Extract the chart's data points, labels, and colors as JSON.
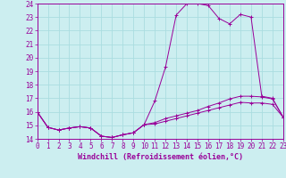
{
  "xlabel": "Windchill (Refroidissement éolien,°C)",
  "bg_color": "#cceef0",
  "grid_color": "#aadde0",
  "line_color": "#990099",
  "xlim": [
    0,
    23
  ],
  "ylim": [
    14,
    24
  ],
  "xticks": [
    0,
    1,
    2,
    3,
    4,
    5,
    6,
    7,
    8,
    9,
    10,
    11,
    12,
    13,
    14,
    15,
    16,
    17,
    18,
    19,
    20,
    21,
    22,
    23
  ],
  "yticks": [
    14,
    15,
    16,
    17,
    18,
    19,
    20,
    21,
    22,
    23,
    24
  ],
  "line1_x": [
    0,
    1,
    2,
    3,
    4,
    5,
    6,
    7,
    8,
    9,
    10,
    11,
    12,
    13,
    14,
    15,
    16,
    17,
    18,
    19,
    20,
    21,
    22,
    23
  ],
  "line1_y": [
    16.0,
    14.85,
    14.65,
    14.8,
    14.9,
    14.8,
    14.2,
    14.1,
    14.3,
    14.45,
    15.05,
    16.8,
    19.3,
    23.15,
    24.0,
    24.0,
    23.85,
    22.9,
    22.5,
    23.2,
    23.0,
    17.15,
    17.0,
    15.6
  ],
  "line2_x": [
    0,
    1,
    2,
    3,
    4,
    5,
    6,
    7,
    8,
    9,
    10,
    11,
    12,
    13,
    14,
    15,
    16,
    17,
    18,
    19,
    20,
    21,
    22,
    23
  ],
  "line2_y": [
    16.0,
    14.85,
    14.65,
    14.8,
    14.9,
    14.8,
    14.2,
    14.1,
    14.3,
    14.45,
    15.05,
    15.2,
    15.5,
    15.7,
    15.9,
    16.1,
    16.4,
    16.65,
    16.95,
    17.15,
    17.15,
    17.1,
    16.95,
    15.6
  ],
  "line3_x": [
    0,
    1,
    2,
    3,
    4,
    5,
    6,
    7,
    8,
    9,
    10,
    11,
    12,
    13,
    14,
    15,
    16,
    17,
    18,
    19,
    20,
    21,
    22,
    23
  ],
  "line3_y": [
    16.0,
    14.85,
    14.65,
    14.8,
    14.9,
    14.8,
    14.2,
    14.1,
    14.3,
    14.45,
    15.05,
    15.1,
    15.3,
    15.5,
    15.7,
    15.9,
    16.1,
    16.3,
    16.5,
    16.7,
    16.65,
    16.65,
    16.55,
    15.6
  ],
  "tick_fontsize": 5.5,
  "xlabel_fontsize": 6.0
}
